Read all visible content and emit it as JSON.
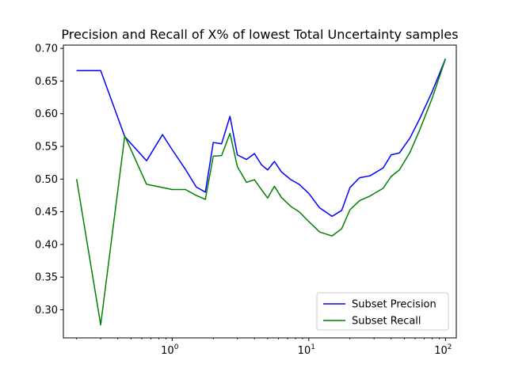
{
  "chart_data": {
    "type": "line",
    "title": "Precision and Recall of X% of lowest Total Uncertainty samples",
    "xlabel": "",
    "ylabel": "",
    "xscale": "log",
    "xlim": [
      0.16,
      120
    ],
    "ylim": [
      0.257,
      0.705
    ],
    "x_ticks": [
      {
        "value": 1,
        "base": "10",
        "exp": "0"
      },
      {
        "value": 10,
        "base": "10",
        "exp": "1"
      },
      {
        "value": 100,
        "base": "10",
        "exp": "2"
      }
    ],
    "y_ticks": [
      "0.30",
      "0.35",
      "0.40",
      "0.45",
      "0.50",
      "0.55",
      "0.60",
      "0.65",
      "0.70"
    ],
    "grid": false,
    "legend_position": "lower-right",
    "x": [
      0.2,
      0.3,
      0.45,
      0.65,
      0.85,
      1.0,
      1.25,
      1.5,
      1.75,
      2.0,
      2.3,
      2.65,
      3.0,
      3.5,
      4.0,
      4.5,
      5.0,
      5.6,
      6.3,
      7.4,
      8.5,
      10.0,
      12.0,
      14.8,
      17.4,
      20.0,
      23.5,
      28.0,
      35.0,
      40.0,
      46.0,
      55.0,
      65.0,
      80.0,
      100.0
    ],
    "series": [
      {
        "name": "Subset Precision",
        "color": "#0000ff",
        "values": [
          0.666,
          0.666,
          0.565,
          0.528,
          0.568,
          0.545,
          0.515,
          0.488,
          0.48,
          0.556,
          0.554,
          0.596,
          0.537,
          0.53,
          0.539,
          0.522,
          0.514,
          0.527,
          0.511,
          0.499,
          0.492,
          0.478,
          0.456,
          0.443,
          0.452,
          0.487,
          0.502,
          0.505,
          0.517,
          0.537,
          0.54,
          0.563,
          0.593,
          0.634,
          0.684
        ]
      },
      {
        "name": "Subset Recall",
        "color": "#008000",
        "values": [
          0.5,
          0.277,
          0.566,
          0.492,
          0.487,
          0.484,
          0.484,
          0.475,
          0.469,
          0.535,
          0.536,
          0.57,
          0.519,
          0.495,
          0.499,
          0.484,
          0.471,
          0.489,
          0.472,
          0.458,
          0.45,
          0.435,
          0.419,
          0.413,
          0.424,
          0.453,
          0.467,
          0.474,
          0.486,
          0.504,
          0.514,
          0.541,
          0.576,
          0.624,
          0.684
        ]
      }
    ]
  }
}
